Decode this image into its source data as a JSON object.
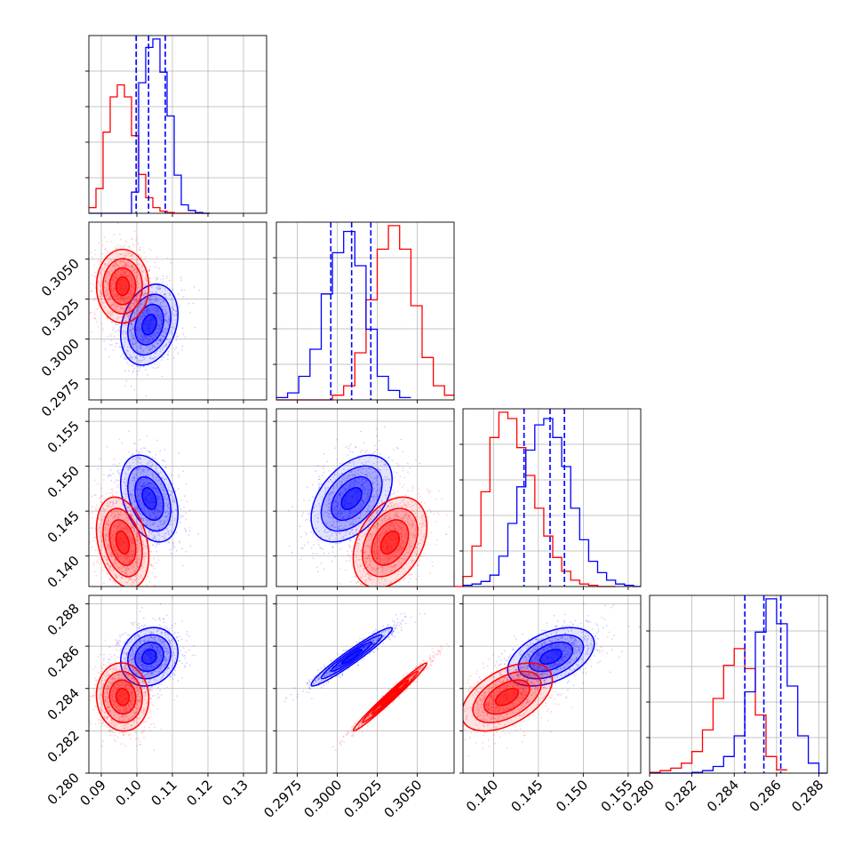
{
  "chart_data": {
    "type": "corner",
    "parameters": 4,
    "colors": {
      "blue": "#0000ff",
      "red": "#ff0000",
      "grid": "#b0b0b0"
    },
    "axis_ticks": [
      {
        "values": [
          0.09,
          0.1,
          0.11,
          0.12,
          0.13
        ],
        "labels": [
          "0.09",
          "0.10",
          "0.11",
          "0.12",
          "0.13"
        ],
        "range": [
          0.0865,
          0.1365
        ]
      },
      {
        "values": [
          0.2975,
          0.3,
          0.3025,
          0.305
        ],
        "labels": [
          "0.2975",
          "0.3000",
          "0.3025",
          "0.3050"
        ],
        "range": [
          0.2962,
          0.3073
        ]
      },
      {
        "values": [
          0.14,
          0.145,
          0.15,
          0.155
        ],
        "labels": [
          "0.140",
          "0.145",
          "0.150",
          "0.155"
        ],
        "range": [
          0.1366,
          0.1564
        ]
      },
      {
        "values": [
          0.28,
          0.282,
          0.284,
          0.286,
          0.288
        ],
        "labels": [
          "0.280",
          "0.282",
          "0.284",
          "0.286",
          "0.288"
        ],
        "range": [
          0.28,
          0.2884
        ]
      }
    ],
    "series": [
      {
        "color": "#0000ff",
        "quantiles": [
          [
            0.0998,
            0.1033,
            0.108
          ],
          [
            0.2996,
            0.3009,
            0.3021
          ],
          [
            0.1434,
            0.1463,
            0.1479
          ],
          [
            0.2845,
            0.2854,
            0.2862
          ]
        ],
        "hist_bins": [
          [
            0.0865,
            0.0885,
            0.0905,
            0.0925,
            0.0945,
            0.0965,
            0.0985,
            0.1005,
            0.1025,
            0.1045,
            0.1065,
            0.1085,
            0.1105,
            0.1125,
            0.1145,
            0.1165,
            0.1185,
            0.1205
          ],
          [
            0.2962,
            0.2969,
            0.2976,
            0.2983,
            0.299,
            0.2997,
            0.3004,
            0.3011,
            0.3018,
            0.3025,
            0.3032,
            0.3039,
            0.3046
          ],
          [
            0.1366,
            0.1376,
            0.1386,
            0.1396,
            0.1406,
            0.1416,
            0.1426,
            0.1436,
            0.1446,
            0.1456,
            0.1466,
            0.1476,
            0.1486,
            0.1496,
            0.1506,
            0.1516,
            0.1526,
            0.1536,
            0.1546,
            0.1556,
            0.1566
          ],
          [
            0.28,
            0.2805,
            0.281,
            0.2815,
            0.282,
            0.2825,
            0.283,
            0.2835,
            0.284,
            0.2845,
            0.285,
            0.2855,
            0.286,
            0.2865,
            0.287,
            0.2875,
            0.288,
            0.2884
          ]
        ],
        "hist_counts": [
          [
            0,
            0,
            0,
            0,
            0,
            0,
            30,
            185,
            235,
            247,
            200,
            138,
            54,
            12,
            4,
            1,
            0
          ],
          [
            2,
            6,
            20,
            43,
            90,
            125,
            143,
            114,
            60,
            20,
            8,
            2
          ],
          [
            1,
            2,
            4,
            9,
            24,
            50,
            79,
            108,
            128,
            133,
            118,
            95,
            62,
            37,
            20,
            11,
            5,
            2,
            1,
            0
          ],
          [
            0,
            0,
            0,
            0,
            1,
            3,
            8,
            20,
            45,
            98,
            170,
            210,
            180,
            105,
            45,
            12,
            0
          ]
        ],
        "center": [
          0.1035,
          0.3009,
          0.1464,
          0.2855
        ],
        "sigma": [
          0.0035,
          0.0011,
          0.0021,
          0.0006
        ],
        "correlation": [
          [
            1,
            0.25,
            -0.35,
            0.15
          ],
          [
            0.25,
            1,
            0.45,
            0.96
          ],
          [
            -0.35,
            0.45,
            1,
            0.45
          ],
          [
            0.15,
            0.96,
            0.45,
            1
          ]
        ]
      },
      {
        "color": "#ff0000",
        "quantiles": [],
        "hist_bins": [
          [
            0.0865,
            0.0885,
            0.0905,
            0.0925,
            0.0945,
            0.0965,
            0.0985,
            0.1005,
            0.1025,
            0.1045,
            0.1065,
            0.1085,
            0.1105,
            0.1125,
            0.1145,
            0.1165,
            0.1185,
            0.1205
          ],
          [
            0.2962,
            0.2969,
            0.2976,
            0.2983,
            0.299,
            0.2997,
            0.3004,
            0.3011,
            0.3018,
            0.3025,
            0.3032,
            0.3039,
            0.3046,
            0.3053,
            0.306,
            0.3067,
            0.3074
          ],
          [
            0.1346,
            0.1356,
            0.1366,
            0.1376,
            0.1386,
            0.1396,
            0.1406,
            0.1416,
            0.1426,
            0.1436,
            0.1446,
            0.1456,
            0.1466,
            0.1476,
            0.1486,
            0.1496,
            0.1506,
            0.1516,
            0.1526,
            0.1536
          ],
          [
            0.28,
            0.2805,
            0.281,
            0.2815,
            0.282,
            0.2825,
            0.283,
            0.2835,
            0.284,
            0.2845,
            0.285,
            0.2855,
            0.286,
            0.2865
          ]
        ],
        "hist_counts": [
          [
            8,
            35,
            115,
            165,
            182,
            165,
            110,
            55,
            22,
            8,
            3,
            1,
            0,
            0,
            0,
            0,
            0
          ],
          [
            0,
            0,
            0,
            0,
            0,
            4,
            12,
            40,
            85,
            128,
            148,
            128,
            80,
            36,
            12,
            4
          ],
          [
            0,
            0,
            8,
            32,
            75,
            118,
            138,
            133,
            110,
            88,
            62,
            40,
            23,
            12,
            5,
            2,
            1,
            0,
            0
          ],
          [
            1,
            3,
            6,
            12,
            26,
            52,
            90,
            130,
            150,
            126,
            70,
            20,
            4
          ]
        ],
        "center": [
          0.096,
          0.3033,
          0.1415,
          0.2836
        ],
        "sigma": [
          0.0032,
          0.001,
          0.0022,
          0.0007
        ],
        "correlation": [
          [
            1,
            0,
            -0.3,
            -0.05
          ],
          [
            0,
            1,
            0.35,
            0.985
          ],
          [
            -0.3,
            0.35,
            1,
            0.5
          ],
          [
            -0.05,
            0.985,
            0.5,
            1
          ]
        ]
      }
    ],
    "contour_levels_sigma": [
      0.5,
      1.0,
      1.5,
      2.0
    ],
    "grid": true
  }
}
